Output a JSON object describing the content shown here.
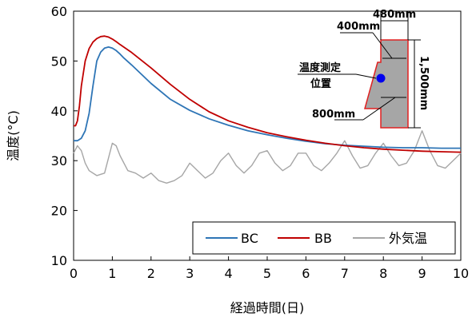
{
  "chart_data": {
    "type": "line",
    "xlabel": "経過時間(日)",
    "ylabel": "温度(°C)",
    "xlim": [
      0,
      10
    ],
    "ylim": [
      10,
      60
    ],
    "x_ticks": [
      "0",
      "1",
      "2",
      "3",
      "4",
      "5",
      "6",
      "7",
      "8",
      "9",
      "10"
    ],
    "y_ticks": [
      "10",
      "20",
      "30",
      "40",
      "50",
      "60"
    ],
    "grid": false,
    "legend_placement": "bottom-right",
    "series": [
      {
        "name": "BC",
        "color": "#2e75b6",
        "x": [
          0,
          0.1,
          0.2,
          0.3,
          0.4,
          0.5,
          0.6,
          0.7,
          0.8,
          0.9,
          1.0,
          1.1,
          1.2,
          1.3,
          1.5,
          2.0,
          2.5,
          3.0,
          3.5,
          4.0,
          4.5,
          5.0,
          5.5,
          6.0,
          6.5,
          7.0,
          7.5,
          8.0,
          8.5,
          9.0,
          9.5,
          10.0
        ],
        "y": [
          34,
          34,
          34.5,
          36,
          39.5,
          45,
          50,
          51.8,
          52.6,
          52.8,
          52.6,
          52.1,
          51.4,
          50.6,
          49.2,
          45.5,
          42.3,
          40.1,
          38.4,
          37.1,
          36.0,
          35.2,
          34.5,
          33.9,
          33.4,
          33.1,
          32.9,
          32.7,
          32.6,
          32.6,
          32.5,
          32.5
        ]
      },
      {
        "name": "BB",
        "color": "#c00000",
        "x": [
          0,
          0.05,
          0.1,
          0.15,
          0.2,
          0.3,
          0.4,
          0.5,
          0.6,
          0.7,
          0.8,
          0.9,
          1.0,
          1.1,
          1.2,
          1.5,
          2.0,
          2.5,
          3.0,
          3.5,
          4.0,
          4.5,
          5.0,
          5.5,
          6.0,
          6.5,
          7.0,
          7.5,
          8.0,
          8.5,
          9.0,
          9.5,
          10.0
        ],
        "y": [
          37,
          37,
          38,
          41,
          45,
          50,
          52.5,
          53.8,
          54.5,
          54.9,
          55.0,
          54.8,
          54.4,
          53.9,
          53.3,
          51.7,
          48.6,
          45.3,
          42.3,
          39.8,
          38.0,
          36.7,
          35.6,
          34.8,
          34.1,
          33.5,
          33.0,
          32.6,
          32.3,
          32.1,
          31.9,
          31.8,
          31.7
        ]
      },
      {
        "name": "外気温",
        "color": "#a6a6a6",
        "x": [
          0,
          0.1,
          0.2,
          0.3,
          0.4,
          0.6,
          0.8,
          1.0,
          1.1,
          1.2,
          1.4,
          1.6,
          1.8,
          2.0,
          2.2,
          2.4,
          2.6,
          2.8,
          3.0,
          3.2,
          3.4,
          3.6,
          3.8,
          4.0,
          4.2,
          4.4,
          4.6,
          4.8,
          5.0,
          5.2,
          5.4,
          5.6,
          5.8,
          6.0,
          6.2,
          6.4,
          6.6,
          6.8,
          7.0,
          7.2,
          7.4,
          7.6,
          7.8,
          8.0,
          8.2,
          8.4,
          8.6,
          8.8,
          9.0,
          9.2,
          9.4,
          9.6,
          9.8,
          10.0
        ],
        "y": [
          31.5,
          33,
          32,
          29.5,
          28,
          27,
          27.5,
          33.5,
          33,
          31,
          28,
          27.5,
          26.5,
          27.5,
          26,
          25.5,
          26,
          27,
          29.5,
          28,
          26.5,
          27.5,
          30,
          31.5,
          29,
          27.5,
          29,
          31.5,
          32,
          29.5,
          28,
          29,
          31.5,
          31.5,
          29,
          28,
          29.5,
          31.5,
          34,
          31,
          28.5,
          29,
          31.5,
          33.5,
          31,
          29,
          29.5,
          32,
          36,
          32,
          29,
          28.5,
          30,
          31.5
        ]
      }
    ],
    "inset": {
      "labels": {
        "top_width": "400mm",
        "width": "480mm",
        "height": "1,500mm",
        "bottom_width": "800mm",
        "point_line1": "温度測定",
        "point_line2": "位置"
      },
      "fill_color": "#a6a6a6",
      "outline_color": "#e02020",
      "point_color": "#0000ee"
    }
  }
}
